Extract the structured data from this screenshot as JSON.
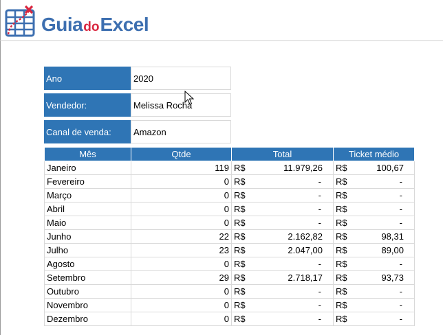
{
  "logo": {
    "part1": "Guia",
    "part2": "do",
    "part3": "Excel"
  },
  "fields": [
    {
      "label": "Ano",
      "value": "2020"
    },
    {
      "label": "Vendedor:",
      "value": "Melissa Rocha"
    },
    {
      "label": "Canal de venda:",
      "value": "Amazon"
    }
  ],
  "table": {
    "headers": [
      "Mês",
      "Qtde",
      "Total",
      "Ticket médio"
    ],
    "currency": "R$",
    "rows": [
      {
        "mes": "Janeiro",
        "qtde": "119",
        "total": "11.979,26",
        "ticket": "100,67"
      },
      {
        "mes": "Fevereiro",
        "qtde": "0",
        "total": "-",
        "ticket": "-"
      },
      {
        "mes": "Março",
        "qtde": "0",
        "total": "-",
        "ticket": "-"
      },
      {
        "mes": "Abril",
        "qtde": "0",
        "total": "-",
        "ticket": "-"
      },
      {
        "mes": "Maio",
        "qtde": "0",
        "total": "-",
        "ticket": "-"
      },
      {
        "mes": "Junho",
        "qtde": "22",
        "total": "2.162,82",
        "ticket": "98,31"
      },
      {
        "mes": "Julho",
        "qtde": "23",
        "total": "2.047,00",
        "ticket": "89,00"
      },
      {
        "mes": "Agosto",
        "qtde": "0",
        "total": "-",
        "ticket": "-"
      },
      {
        "mes": "Setembro",
        "qtde": "29",
        "total": "2.718,17",
        "ticket": "93,73"
      },
      {
        "mes": "Outubro",
        "qtde": "0",
        "total": "-",
        "ticket": "-"
      },
      {
        "mes": "Novembro",
        "qtde": "0",
        "total": "-",
        "ticket": "-"
      },
      {
        "mes": "Dezembro",
        "qtde": "0",
        "total": "-",
        "ticket": "-"
      }
    ]
  },
  "colors": {
    "header_blue": "#2f75b5",
    "logo_blue": "#3d6fb0",
    "logo_red": "#d9263f",
    "grid": "#d9d9d9"
  },
  "icons": {
    "logo": "spreadsheet-grid-icon",
    "cursor": "mouse-pointer-icon"
  }
}
